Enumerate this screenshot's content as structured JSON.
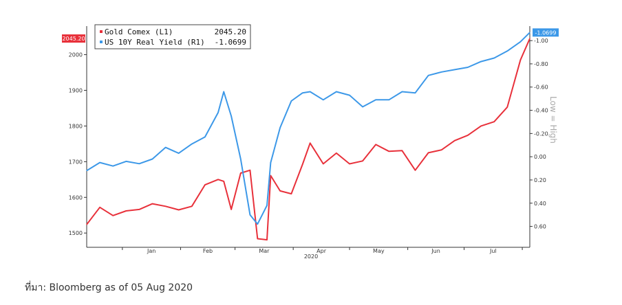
{
  "chart_data": {
    "type": "line",
    "title": "",
    "x": [
      "2019-12-13",
      "2019-12-20",
      "2019-12-27",
      "2020-01-03",
      "2020-01-10",
      "2020-01-17",
      "2020-01-24",
      "2020-01-31",
      "2020-02-07",
      "2020-02-14",
      "2020-02-21",
      "2020-02-24",
      "2020-02-28",
      "2020-03-04",
      "2020-03-09",
      "2020-03-13",
      "2020-03-18",
      "2020-03-20",
      "2020-03-25",
      "2020-03-31",
      "2020-04-06",
      "2020-04-10",
      "2020-04-17",
      "2020-04-24",
      "2020-05-01",
      "2020-05-08",
      "2020-05-15",
      "2020-05-22",
      "2020-05-29",
      "2020-06-05",
      "2020-06-12",
      "2020-06-19",
      "2020-06-26",
      "2020-07-03",
      "2020-07-10",
      "2020-07-17",
      "2020-07-24",
      "2020-07-31",
      "2020-08-05"
    ],
    "x_tick_labels": [
      "Jan",
      "Feb",
      "Mar",
      "Apr",
      "May",
      "Jun",
      "Jul"
    ],
    "x_year_label": "2020",
    "left_axis": {
      "ticks": [
        1500,
        1600,
        1700,
        1800,
        1900,
        2000
      ],
      "range": [
        1460,
        2080
      ]
    },
    "right_axis": {
      "ticks": [
        "-1.00",
        "-0.80",
        "-0.60",
        "-0.40",
        "-0.20",
        "0.00",
        "0.20",
        "0.40",
        "0.60"
      ],
      "tick_values": [
        -1.0,
        -0.8,
        -0.6,
        -0.4,
        -0.2,
        0.0,
        0.2,
        0.4,
        0.6
      ],
      "range": [
        -1.125,
        0.78
      ],
      "inverted": true,
      "side_label": "Low = High"
    },
    "series": [
      {
        "name": "Gold Comex (L1)",
        "last_label": "2045.20",
        "axis": "left",
        "color": "#e8303a",
        "values": [
          1524,
          1572,
          1549,
          1562,
          1566,
          1582,
          1575,
          1565,
          1575,
          1635,
          1650,
          1645,
          1566,
          1668,
          1676,
          1484,
          1481,
          1661,
          1618,
          1610,
          1693,
          1752,
          1694,
          1724,
          1694,
          1702,
          1748,
          1729,
          1731,
          1676,
          1725,
          1733,
          1759,
          1774,
          1800,
          1812,
          1853,
          1985,
          2045.2
        ]
      },
      {
        "name": "US 10Y Real Yield (R1)",
        "last_label": "-1.0699",
        "axis": "right",
        "color": "#3c98e8",
        "values": [
          0.12,
          0.05,
          0.08,
          0.04,
          0.06,
          0.02,
          -0.08,
          -0.03,
          -0.11,
          -0.17,
          -0.38,
          -0.56,
          -0.35,
          0.02,
          0.5,
          0.58,
          0.42,
          0.05,
          -0.25,
          -0.48,
          -0.55,
          -0.56,
          -0.49,
          -0.56,
          -0.53,
          -0.43,
          -0.49,
          -0.49,
          -0.56,
          -0.55,
          -0.7,
          -0.73,
          -0.75,
          -0.77,
          -0.82,
          -0.85,
          -0.91,
          -0.99,
          -1.0699
        ]
      }
    ]
  }
}
